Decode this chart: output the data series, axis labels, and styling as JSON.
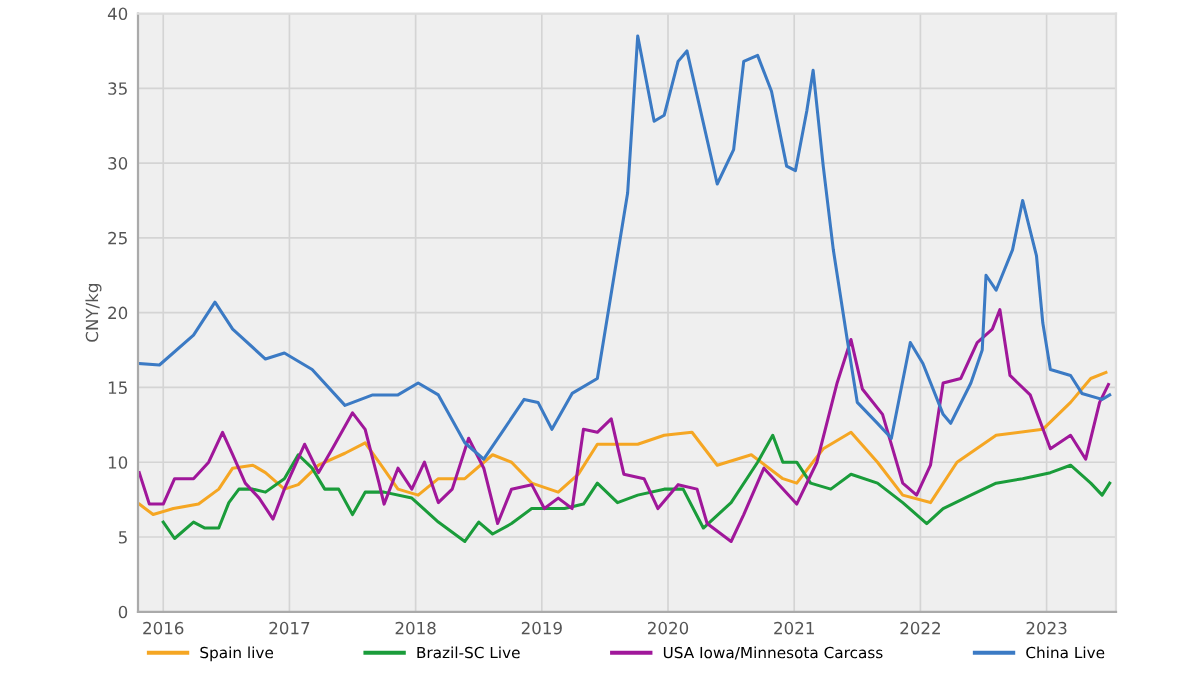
{
  "chart_data": {
    "type": "line",
    "ylabel": "CNY/kg",
    "xlim": [
      2015.8,
      2023.55
    ],
    "ylim": [
      0,
      40
    ],
    "xticks": [
      2016,
      2017,
      2018,
      2019,
      2020,
      2021,
      2022,
      2023
    ],
    "yticks": [
      0,
      5,
      10,
      15,
      20,
      25,
      30,
      35,
      40
    ],
    "grid": true,
    "legend": "bottom",
    "marker": "none",
    "line_style": "solid",
    "series": [
      {
        "name": "Spain live",
        "color": "#f5a623",
        "x": [
          2015.81,
          2015.92,
          2016.08,
          2016.28,
          2016.44,
          2016.55,
          2016.71,
          2016.81,
          2016.96,
          2017.07,
          2017.23,
          2017.44,
          2017.6,
          2017.71,
          2017.86,
          2018.02,
          2018.18,
          2018.39,
          2018.61,
          2018.76,
          2018.92,
          2019.13,
          2019.29,
          2019.44,
          2019.76,
          2019.97,
          2020.19,
          2020.39,
          2020.66,
          2020.91,
          2021.02,
          2021.23,
          2021.45,
          2021.66,
          2021.86,
          2022.08,
          2022.29,
          2022.6,
          2022.97,
          2023.19,
          2023.35,
          2023.47
        ],
        "values": [
          7.2,
          6.5,
          6.9,
          7.2,
          8.2,
          9.6,
          9.8,
          9.3,
          8.2,
          8.5,
          9.8,
          10.6,
          11.3,
          10.0,
          8.2,
          7.8,
          8.9,
          8.9,
          10.5,
          10.0,
          8.6,
          8.0,
          9.2,
          11.2,
          11.2,
          11.8,
          12.0,
          9.8,
          10.5,
          8.9,
          8.6,
          10.9,
          12.0,
          10.0,
          7.8,
          7.3,
          10.0,
          11.8,
          12.2,
          14.0,
          15.6,
          16.0
        ]
      },
      {
        "name": "Brazil-SC Live",
        "color": "#1a9c3a",
        "x": [
          2016.0,
          2016.09,
          2016.24,
          2016.33,
          2016.44,
          2016.52,
          2016.6,
          2016.71,
          2016.81,
          2016.96,
          2017.07,
          2017.18,
          2017.28,
          2017.39,
          2017.5,
          2017.6,
          2017.75,
          2017.97,
          2018.18,
          2018.39,
          2018.5,
          2018.61,
          2018.76,
          2018.92,
          2019.18,
          2019.33,
          2019.44,
          2019.6,
          2019.76,
          2019.97,
          2020.12,
          2020.28,
          2020.5,
          2020.71,
          2020.83,
          2020.91,
          2021.02,
          2021.13,
          2021.29,
          2021.45,
          2021.66,
          2021.86,
          2022.05,
          2022.18,
          2022.4,
          2022.6,
          2022.81,
          2023.03,
          2023.19,
          2023.35,
          2023.44,
          2023.5
        ],
        "values": [
          6.0,
          4.9,
          6.0,
          5.6,
          5.6,
          7.3,
          8.2,
          8.2,
          8.0,
          8.9,
          10.5,
          9.6,
          8.2,
          8.2,
          6.5,
          8.0,
          8.0,
          7.6,
          6.0,
          4.7,
          6.0,
          5.2,
          5.9,
          6.9,
          6.9,
          7.2,
          8.6,
          7.3,
          7.8,
          8.2,
          8.2,
          5.6,
          7.3,
          10.0,
          11.8,
          10.0,
          10.0,
          8.6,
          8.2,
          9.2,
          8.6,
          7.3,
          5.9,
          6.9,
          7.8,
          8.6,
          8.9,
          9.3,
          9.8,
          8.6,
          7.8,
          8.6
        ]
      },
      {
        "name": "USA Iowa/Minnesota Carcass",
        "color": "#a0179a",
        "x": [
          2015.81,
          2015.89,
          2016.0,
          2016.09,
          2016.24,
          2016.36,
          2016.47,
          2016.55,
          2016.65,
          2016.76,
          2016.87,
          2016.96,
          2017.12,
          2017.23,
          2017.34,
          2017.5,
          2017.6,
          2017.71,
          2017.75,
          2017.86,
          2017.97,
          2018.07,
          2018.18,
          2018.29,
          2018.42,
          2018.54,
          2018.65,
          2018.76,
          2018.92,
          2019.02,
          2019.13,
          2019.24,
          2019.33,
          2019.44,
          2019.55,
          2019.65,
          2019.81,
          2019.92,
          2020.08,
          2020.23,
          2020.31,
          2020.5,
          2020.6,
          2020.76,
          2021.02,
          2021.18,
          2021.34,
          2021.45,
          2021.54,
          2021.7,
          2021.86,
          2021.97,
          2022.08,
          2022.18,
          2022.32,
          2022.45,
          2022.57,
          2022.63,
          2022.71,
          2022.87,
          2023.03,
          2023.19,
          2023.31,
          2023.42,
          2023.49
        ],
        "values": [
          9.3,
          7.2,
          7.2,
          8.9,
          8.9,
          10.0,
          12.0,
          10.5,
          8.6,
          7.6,
          6.2,
          8.2,
          11.2,
          9.3,
          10.9,
          13.3,
          12.2,
          8.6,
          7.2,
          9.6,
          8.2,
          10.0,
          7.3,
          8.2,
          11.6,
          9.6,
          5.9,
          8.2,
          8.5,
          6.9,
          7.6,
          6.9,
          12.2,
          12.0,
          12.9,
          9.2,
          8.9,
          6.9,
          8.5,
          8.2,
          5.9,
          4.7,
          6.5,
          9.6,
          7.2,
          10.0,
          15.3,
          18.2,
          14.9,
          13.2,
          8.6,
          7.8,
          9.8,
          15.3,
          15.6,
          18.0,
          18.9,
          20.2,
          15.8,
          14.5,
          10.9,
          11.8,
          10.2,
          14.0,
          15.2
        ]
      },
      {
        "name": "China Live",
        "color": "#3b7ac4",
        "x": [
          2015.81,
          2015.97,
          2016.24,
          2016.41,
          2016.55,
          2016.81,
          2016.96,
          2017.18,
          2017.44,
          2017.66,
          2017.86,
          2018.02,
          2018.18,
          2018.39,
          2018.54,
          2018.7,
          2018.86,
          2018.97,
          2019.08,
          2019.24,
          2019.44,
          2019.68,
          2019.76,
          2019.89,
          2019.97,
          2020.08,
          2020.15,
          2020.39,
          2020.52,
          2020.6,
          2020.71,
          2020.82,
          2020.94,
          2021.01,
          2021.1,
          2021.15,
          2021.23,
          2021.31,
          2021.42,
          2021.5,
          2021.66,
          2021.77,
          2021.92,
          2022.02,
          2022.18,
          2022.24,
          2022.4,
          2022.49,
          2022.52,
          2022.6,
          2022.73,
          2022.81,
          2022.92,
          2022.97,
          2023.03,
          2023.19,
          2023.28,
          2023.44,
          2023.5
        ],
        "values": [
          16.6,
          16.5,
          18.5,
          20.7,
          18.9,
          16.9,
          17.3,
          16.2,
          13.8,
          14.5,
          14.5,
          15.3,
          14.5,
          11.3,
          10.2,
          12.2,
          14.2,
          14.0,
          12.2,
          14.6,
          15.6,
          28.0,
          38.5,
          32.8,
          33.2,
          36.8,
          37.5,
          28.6,
          30.9,
          36.8,
          37.2,
          34.8,
          29.8,
          29.5,
          33.5,
          36.2,
          29.8,
          24.2,
          18.2,
          14.0,
          12.6,
          11.6,
          18.0,
          16.6,
          13.2,
          12.6,
          15.3,
          17.5,
          22.5,
          21.5,
          24.2,
          27.5,
          23.8,
          19.3,
          16.2,
          15.8,
          14.6,
          14.2,
          14.5
        ]
      }
    ]
  }
}
